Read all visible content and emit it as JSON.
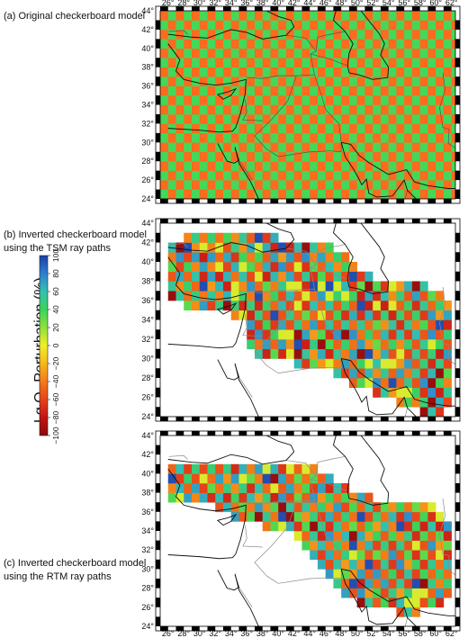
{
  "panels": [
    {
      "id": "a",
      "caption": "(a) Original checkerboard model",
      "kind": "original"
    },
    {
      "id": "b",
      "caption": "(b) Inverted checkerboard model\nusing the TSM ray paths",
      "kind": "tsm"
    },
    {
      "id": "c",
      "caption": "(c) Inverted checkerboard model\nusing the RTM ray paths",
      "kind": "rtm"
    }
  ],
  "map": {
    "lon_ticks": [
      "26°",
      "28°",
      "30°",
      "32°",
      "34°",
      "36°",
      "38°",
      "40°",
      "42°",
      "44°",
      "46°",
      "48°",
      "50°",
      "52°",
      "54°",
      "56°",
      "58°",
      "60°",
      "62°"
    ],
    "lat_ticks": [
      "44°",
      "42°",
      "40°",
      "38°",
      "36°",
      "34°",
      "32°",
      "30°",
      "28°",
      "26°",
      "24°"
    ],
    "lon_range": [
      25,
      62.5
    ],
    "lat_range": [
      24,
      44
    ]
  },
  "colorbar": {
    "title_main": "Lg Q",
    "title_sub": "0",
    "title_rest": " Perturbation (%)",
    "ticks": [
      "100",
      "80",
      "60",
      "40",
      "20",
      "0",
      "−20",
      "−40",
      "−60",
      "−80",
      "−100"
    ],
    "colors": [
      "#1b3fa6",
      "#2f7fd0",
      "#33c0b0",
      "#3bd35a",
      "#8ee23a",
      "#f0ee2a",
      "#f6b81c",
      "#f47a18",
      "#e8421a",
      "#c41414",
      "#8c0a0a"
    ]
  },
  "checker_colors": {
    "positive": "#43d85a",
    "negative": "#ff6a1e"
  }
}
